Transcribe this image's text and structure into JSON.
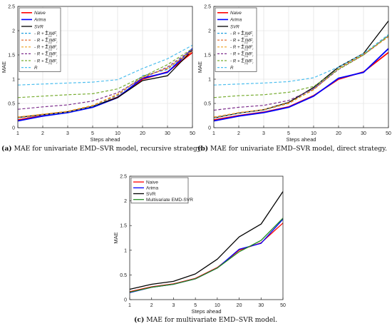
{
  "chart_data": [
    {
      "type": "line",
      "caption_tag": "(a)",
      "caption_text": "MAE for univariate EMD–SVR model, recursive strategy.",
      "ylabel": "MAE",
      "xlabel": "Steps ahead",
      "categories": [
        "1",
        "2",
        "3",
        "5",
        "10",
        "20",
        "30",
        "50"
      ],
      "ylim": [
        0,
        2.5
      ],
      "yticks": [
        "0",
        "0.5",
        "1",
        "1.5",
        "2",
        "2.5"
      ],
      "grid": true,
      "legend_position": "top-left",
      "series": [
        {
          "name": "Naive",
          "color": "#ff0000",
          "dash": "solid",
          "width": 1.8,
          "values": [
            0.16,
            0.25,
            0.32,
            0.43,
            0.63,
            1.0,
            1.15,
            1.55
          ]
        },
        {
          "name": "Arima",
          "color": "#0000ff",
          "dash": "solid",
          "width": 1.8,
          "values": [
            0.14,
            0.24,
            0.31,
            0.42,
            0.62,
            1.02,
            1.14,
            1.63
          ]
        },
        {
          "name": "SVR",
          "color": "#000000",
          "dash": "solid",
          "width": 1.3,
          "values": [
            0.21,
            0.27,
            0.33,
            0.44,
            0.62,
            0.97,
            1.07,
            1.6
          ]
        },
        {
          "name": "R + Σ_{i=1}^{1} IMF_i",
          "color": "#1f9fdf",
          "dash": "dashed",
          "width": 1.2,
          "values": [
            0.2,
            0.26,
            0.32,
            0.44,
            0.66,
            1.07,
            1.2,
            1.62
          ]
        },
        {
          "name": "R + Σ_{i=2}^{1} IMF_i",
          "color": "#e06020",
          "dash": "dashed",
          "width": 1.2,
          "values": [
            0.21,
            0.27,
            0.33,
            0.45,
            0.68,
            1.05,
            1.22,
            1.59
          ]
        },
        {
          "name": "R + Σ_{i=3}^{1} IMF_i",
          "color": "#eda020",
          "dash": "dashed",
          "width": 1.2,
          "values": [
            0.22,
            0.28,
            0.34,
            0.46,
            0.69,
            1.04,
            1.23,
            1.58
          ]
        },
        {
          "name": "R + Σ_{i=4}^{1} IMF_i",
          "color": "#7e2f8e",
          "dash": "dashed",
          "width": 1.2,
          "values": [
            0.38,
            0.43,
            0.47,
            0.55,
            0.72,
            1.02,
            1.25,
            1.61
          ]
        },
        {
          "name": "R + Σ_{i=5}^{1} IMF_i",
          "color": "#77ac30",
          "dash": "dashed",
          "width": 1.2,
          "values": [
            0.62,
            0.65,
            0.68,
            0.7,
            0.8,
            1.05,
            1.3,
            1.63
          ]
        },
        {
          "name": "R",
          "color": "#4dbeee",
          "dash": "dashed",
          "width": 1.2,
          "values": [
            0.88,
            0.9,
            0.92,
            0.94,
            0.99,
            1.22,
            1.42,
            1.7
          ]
        }
      ]
    },
    {
      "type": "line",
      "caption_tag": "(b)",
      "caption_text": "MAE for univariate EMD–SVR model, direct strategy.",
      "ylabel": "MAE",
      "xlabel": "Steps ahead",
      "categories": [
        "1",
        "2",
        "3",
        "5",
        "10",
        "20",
        "30",
        "50"
      ],
      "ylim": [
        0,
        2.5
      ],
      "yticks": [
        "0",
        "0.5",
        "1",
        "1.5",
        "2",
        "2.5"
      ],
      "grid": true,
      "legend_position": "top-left",
      "series": [
        {
          "name": "Naive",
          "color": "#ff0000",
          "dash": "solid",
          "width": 1.8,
          "values": [
            0.16,
            0.25,
            0.32,
            0.43,
            0.66,
            1.0,
            1.15,
            1.55
          ]
        },
        {
          "name": "Arima",
          "color": "#0000ff",
          "dash": "solid",
          "width": 1.8,
          "values": [
            0.14,
            0.24,
            0.31,
            0.42,
            0.65,
            1.02,
            1.14,
            1.63
          ]
        },
        {
          "name": "SVR",
          "color": "#000000",
          "dash": "solid",
          "width": 1.3,
          "values": [
            0.2,
            0.3,
            0.37,
            0.52,
            0.83,
            1.25,
            1.53,
            2.2
          ]
        },
        {
          "name": "R + Σ_{i=1}^{1} IMF_i",
          "color": "#1f9fdf",
          "dash": "dashed",
          "width": 1.2,
          "values": [
            0.2,
            0.3,
            0.36,
            0.5,
            0.8,
            1.23,
            1.5,
            1.9
          ]
        },
        {
          "name": "R + Σ_{i=2}^{1} IMF_i",
          "color": "#e06020",
          "dash": "dashed",
          "width": 1.2,
          "values": [
            0.21,
            0.31,
            0.37,
            0.5,
            0.79,
            1.22,
            1.5,
            1.88
          ]
        },
        {
          "name": "R + Σ_{i=3}^{1} IMF_i",
          "color": "#eda020",
          "dash": "dashed",
          "width": 1.2,
          "values": [
            0.22,
            0.31,
            0.37,
            0.51,
            0.78,
            1.22,
            1.52,
            1.87
          ]
        },
        {
          "name": "R + Σ_{i=4}^{1} IMF_i",
          "color": "#7e2f8e",
          "dash": "dashed",
          "width": 1.2,
          "values": [
            0.36,
            0.42,
            0.46,
            0.56,
            0.8,
            1.2,
            1.5,
            1.9
          ]
        },
        {
          "name": "R + Σ_{i=5}^{1} IMF_i",
          "color": "#77ac30",
          "dash": "dashed",
          "width": 1.2,
          "values": [
            0.62,
            0.66,
            0.68,
            0.73,
            0.85,
            1.2,
            1.5,
            1.9
          ]
        },
        {
          "name": "R",
          "color": "#4dbeee",
          "dash": "dashed",
          "width": 1.2,
          "values": [
            0.88,
            0.9,
            0.92,
            0.95,
            1.03,
            1.25,
            1.53,
            1.92
          ]
        }
      ]
    },
    {
      "type": "line",
      "caption_tag": "(c)",
      "caption_text": "MAE for multivariate EMD–SVR model.",
      "ylabel": "MAE",
      "xlabel": "Steps ahead",
      "categories": [
        "1",
        "2",
        "3",
        "5",
        "10",
        "20",
        "30",
        "50"
      ],
      "ylim": [
        0,
        2.5
      ],
      "yticks": [
        "0",
        "0.5",
        "1",
        "1.5",
        "2",
        "2.5"
      ],
      "grid": false,
      "legend_position": "top-left",
      "series": [
        {
          "name": "Naive",
          "color": "#ff0000",
          "dash": "solid",
          "width": 1.3,
          "values": [
            0.16,
            0.26,
            0.32,
            0.43,
            0.65,
            1.0,
            1.15,
            1.55
          ]
        },
        {
          "name": "Arima",
          "color": "#0000ff",
          "dash": "solid",
          "width": 1.3,
          "values": [
            0.14,
            0.25,
            0.31,
            0.42,
            0.64,
            1.02,
            1.14,
            1.63
          ]
        },
        {
          "name": "SVR",
          "color": "#000000",
          "dash": "solid",
          "width": 1.3,
          "values": [
            0.21,
            0.31,
            0.37,
            0.52,
            0.82,
            1.27,
            1.53,
            2.19
          ]
        },
        {
          "name": "Multivariate EMD-SVR",
          "color": "#228b22",
          "dash": "solid",
          "width": 1.3,
          "values": [
            0.15,
            0.25,
            0.31,
            0.42,
            0.64,
            0.97,
            1.2,
            1.65
          ]
        }
      ]
    }
  ]
}
